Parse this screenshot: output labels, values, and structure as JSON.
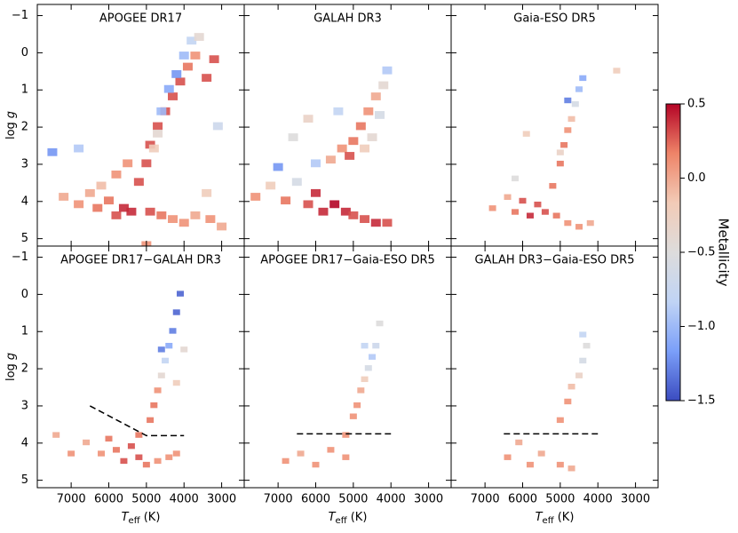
{
  "chart_data": [
    {
      "type": "scatter",
      "title": "APOGEE DR17",
      "x": [
        7200,
        6800,
        6500,
        6300,
        6000,
        5800,
        5600,
        5400,
        6200,
        5800,
        5500,
        5200,
        5000,
        4900,
        4700,
        4500,
        4300,
        4100,
        3900,
        3700,
        3200,
        3400,
        4800,
        4700,
        4600,
        4400,
        4200,
        4000,
        3800,
        3600,
        4900,
        4600,
        4300,
        4000,
        3700,
        3300,
        3000,
        7500,
        6800,
        5000,
        3400,
        3100
      ],
      "y": [
        3.9,
        4.1,
        3.8,
        4.2,
        4.0,
        4.4,
        4.2,
        4.3,
        3.6,
        3.3,
        3.0,
        3.5,
        3.0,
        2.5,
        2.0,
        1.6,
        1.2,
        0.8,
        0.4,
        0.1,
        0.2,
        0.7,
        2.6,
        2.2,
        1.6,
        1.0,
        0.6,
        0.1,
        -0.3,
        -0.4,
        4.3,
        4.4,
        4.5,
        4.6,
        4.4,
        4.5,
        4.7,
        2.7,
        2.6,
        5.2,
        3.8,
        2.0
      ],
      "c": [
        0.0,
        0.1,
        0.0,
        0.2,
        0.2,
        0.3,
        0.4,
        0.4,
        -0.1,
        0.1,
        0.1,
        0.3,
        0.3,
        0.3,
        0.3,
        0.3,
        0.3,
        0.3,
        0.2,
        0.1,
        0.3,
        0.3,
        -0.2,
        -0.4,
        -1.0,
        -1.1,
        -1.2,
        -1.0,
        -0.8,
        -0.4,
        0.3,
        0.2,
        0.1,
        0.1,
        0.0,
        0.1,
        0.0,
        -1.2,
        -0.9,
        0.1,
        -0.2,
        -0.7
      ],
      "xlim": [
        7900,
        2400
      ],
      "ylim": [
        5.2,
        -1.3
      ],
      "xticks": [
        7000,
        6000,
        5000,
        4000,
        3000
      ],
      "yticks": [
        {
          "value": -1,
          "label": "−1"
        },
        0,
        1,
        2,
        3,
        4,
        5
      ],
      "ylabel": "log",
      "ylabel_var": "g"
    },
    {
      "type": "scatter",
      "title": "GALAH DR3",
      "x": [
        7600,
        7200,
        6800,
        6500,
        6200,
        6000,
        5800,
        5500,
        5200,
        5000,
        4700,
        4400,
        4100,
        6000,
        5600,
        5300,
        5000,
        4800,
        4600,
        4400,
        4200,
        4100,
        4300,
        4500,
        4700,
        5100,
        6600,
        6200,
        5400,
        7000
      ],
      "y": [
        3.9,
        3.6,
        4.0,
        3.5,
        4.1,
        3.8,
        4.3,
        4.1,
        4.3,
        4.4,
        4.5,
        4.6,
        4.6,
        3.0,
        2.9,
        2.6,
        2.4,
        2.0,
        1.6,
        1.2,
        0.9,
        0.5,
        1.7,
        2.3,
        2.6,
        2.8,
        2.3,
        1.8,
        1.6,
        3.1
      ],
      "c": [
        0.1,
        -0.2,
        0.2,
        -0.6,
        0.3,
        0.4,
        0.4,
        0.5,
        0.4,
        0.3,
        0.3,
        0.4,
        0.3,
        -0.9,
        0.0,
        0.1,
        0.2,
        0.2,
        0.1,
        0.0,
        -0.4,
        -0.9,
        -0.6,
        -0.4,
        -0.2,
        0.3,
        -0.5,
        -0.3,
        -0.8,
        -1.2
      ],
      "xlim": [
        7900,
        2400
      ],
      "ylim": [
        5.2,
        -1.3
      ],
      "xticks": [
        7000,
        6000,
        5000,
        4000,
        3000
      ],
      "yticks": [
        {
          "value": -1,
          "label": "−1"
        },
        0,
        1,
        2,
        3,
        4,
        5
      ]
    },
    {
      "type": "scatter",
      "title": "Gaia-ESO DR5",
      "x": [
        6800,
        6400,
        6200,
        6000,
        5800,
        5600,
        5400,
        5100,
        4800,
        4500,
        4200,
        5200,
        5000,
        4900,
        4800,
        4700,
        4600,
        4500,
        4400,
        4800,
        5000,
        6200,
        5900,
        3500
      ],
      "y": [
        4.2,
        3.9,
        4.3,
        4.0,
        4.4,
        4.1,
        4.3,
        4.4,
        4.6,
        4.7,
        4.6,
        3.6,
        3.0,
        2.5,
        2.1,
        1.8,
        1.4,
        1.0,
        0.7,
        1.3,
        2.7,
        3.4,
        2.2,
        0.5
      ],
      "c": [
        0.1,
        0.0,
        0.2,
        0.3,
        0.4,
        0.3,
        0.3,
        0.2,
        0.1,
        0.1,
        0.0,
        0.2,
        0.2,
        0.2,
        0.1,
        -0.1,
        -0.6,
        -1.0,
        -1.1,
        -1.3,
        -0.3,
        -0.5,
        -0.2,
        -0.2
      ],
      "xlim": [
        7900,
        2400
      ],
      "ylim": [
        5.2,
        -1.3
      ],
      "xticks": [
        7000,
        6000,
        5000,
        4000,
        3000
      ],
      "yticks": [
        {
          "value": -1,
          "label": "−1"
        },
        0,
        1,
        2,
        3,
        4,
        5
      ]
    },
    {
      "type": "scatter",
      "title": "APOGEE DR17−GALAH DR3",
      "x": [
        6600,
        6200,
        6000,
        5800,
        5600,
        5400,
        5200,
        5000,
        4700,
        4400,
        4200,
        5200,
        4900,
        4800,
        4700,
        4600,
        4500,
        4400,
        4300,
        4200,
        4100,
        4600,
        4000,
        4200,
        7000,
        7400
      ],
      "y": [
        4.0,
        4.3,
        3.9,
        4.2,
        4.5,
        4.1,
        4.4,
        4.6,
        4.5,
        4.4,
        4.3,
        3.8,
        3.4,
        3.0,
        2.6,
        2.2,
        1.8,
        1.4,
        1.0,
        0.5,
        0.0,
        1.5,
        1.5,
        2.4,
        4.3,
        3.8
      ],
      "c": [
        0.0,
        0.1,
        0.2,
        0.2,
        0.3,
        0.3,
        0.3,
        0.2,
        0.1,
        0.1,
        0.1,
        0.2,
        0.2,
        0.2,
        0.1,
        -0.4,
        -0.8,
        -1.1,
        -1.3,
        -1.4,
        -1.4,
        -1.3,
        -0.4,
        -0.2,
        0.1,
        0.0
      ],
      "lines": [
        {
          "x": [
            6500,
            5000,
            4000
          ],
          "y": [
            3.0,
            3.8,
            3.8
          ]
        }
      ],
      "xlim": [
        7900,
        2400
      ],
      "ylim": [
        5.2,
        -1.3
      ],
      "xticks": [
        7000,
        6000,
        5000,
        4000,
        3000
      ],
      "yticks": [
        {
          "value": -1,
          "label": "−1"
        },
        0,
        1,
        2,
        3,
        4,
        5
      ],
      "xlabel": "T",
      "xlabel_sub": "eff",
      "xlabel_unit": " (K)",
      "ylabel": "log",
      "ylabel_var": "g"
    },
    {
      "type": "scatter",
      "title": "APOGEE DR17−Gaia-ESO DR5",
      "x": [
        6800,
        6400,
        6000,
        5600,
        5200,
        5000,
        4900,
        4800,
        4700,
        4600,
        4500,
        4400,
        4300,
        4700,
        5200
      ],
      "y": [
        4.5,
        4.3,
        4.6,
        4.2,
        4.4,
        3.3,
        3.0,
        2.6,
        2.3,
        2.0,
        1.7,
        1.4,
        0.8,
        1.4,
        3.8
      ],
      "c": [
        0.1,
        0.0,
        0.1,
        0.1,
        0.1,
        0.1,
        0.1,
        0.0,
        -0.2,
        -0.6,
        -0.9,
        -0.7,
        -0.5,
        -0.8,
        0.1
      ],
      "lines": [
        {
          "x": [
            6500,
            4000
          ],
          "y": [
            3.75,
            3.75
          ]
        }
      ],
      "xlim": [
        7900,
        2400
      ],
      "ylim": [
        5.2,
        -1.3
      ],
      "xticks": [
        7000,
        6000,
        5000,
        4000,
        3000
      ],
      "yticks": [
        {
          "value": -1,
          "label": "−1"
        },
        0,
        1,
        2,
        3,
        4,
        5
      ],
      "xlabel": "T",
      "xlabel_sub": "eff",
      "xlabel_unit": " (K)"
    },
    {
      "type": "scatter",
      "title": "GALAH DR3−Gaia-ESO DR5",
      "x": [
        6400,
        6100,
        5800,
        5500,
        5000,
        4700,
        5000,
        4800,
        4700,
        4500,
        4400,
        4300,
        4400
      ],
      "y": [
        4.4,
        4.0,
        4.6,
        4.3,
        4.6,
        4.7,
        3.4,
        2.9,
        2.5,
        2.2,
        1.8,
        1.4,
        1.1
      ],
      "c": [
        0.1,
        0.0,
        0.1,
        0.0,
        0.1,
        0.0,
        0.1,
        0.1,
        -0.1,
        -0.3,
        -0.6,
        -0.5,
        -0.8
      ],
      "lines": [
        {
          "x": [
            6500,
            4000
          ],
          "y": [
            3.75,
            3.75
          ]
        }
      ],
      "xlim": [
        7900,
        2400
      ],
      "ylim": [
        5.2,
        -1.3
      ],
      "xticks": [
        7000,
        6000,
        5000,
        4000,
        3000
      ],
      "yticks": [
        {
          "value": -1,
          "label": "−1"
        },
        0,
        1,
        2,
        3,
        4,
        5
      ],
      "xlabel": "T",
      "xlabel_sub": "eff",
      "xlabel_unit": " (K)"
    }
  ],
  "colorbar": {
    "label": "Metallicity",
    "lim": [
      -1.5,
      0.5
    ],
    "ticks": [
      0.5,
      {
        "value": 0,
        "label": "0.0"
      },
      {
        "value": -0.5,
        "label": "−0.5"
      },
      {
        "value": -1,
        "label": "−1.0"
      },
      {
        "value": -1.5,
        "label": "−1.5"
      }
    ],
    "colors": [
      "#3b4cc0",
      "#7b9ff9",
      "#c0d4f5",
      "#dddcdc",
      "#f2cbb7",
      "#ee8468",
      "#b40426"
    ]
  }
}
